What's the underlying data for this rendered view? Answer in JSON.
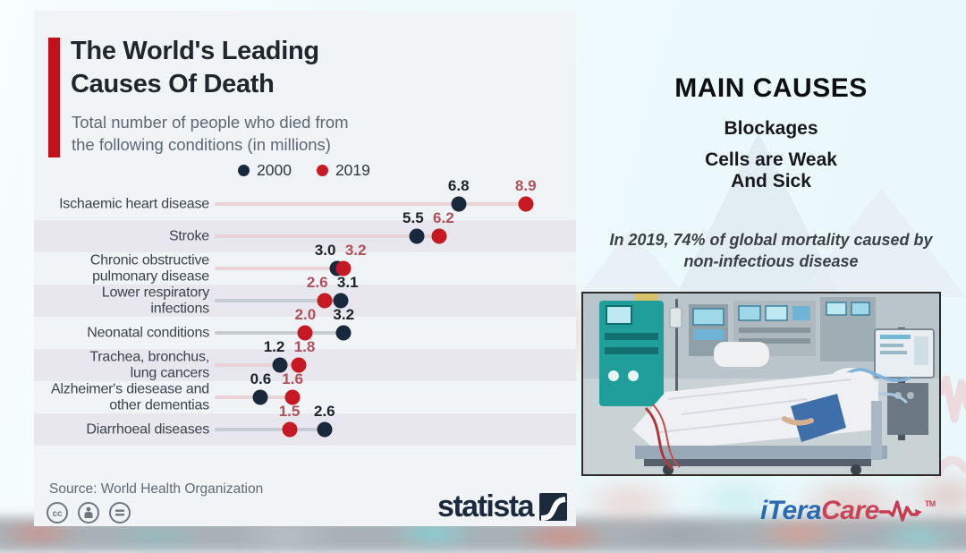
{
  "infographic": {
    "title_line1": "The World's Leading",
    "title_line2": "Causes Of Death",
    "subtitle_line1": "Total number of people who died from",
    "subtitle_line2": "the following conditions (in millions)",
    "source": "Source: World Health Organization",
    "statista_label": "statista",
    "license_icons": [
      "cc-icon",
      "attribution-person-icon",
      "equals-icon"
    ],
    "accent_color": "#c1121c"
  },
  "chart_data": {
    "type": "dumbbell",
    "title": "The World's Leading Causes Of Death",
    "unit": "millions of deaths",
    "xlim": [
      0,
      10
    ],
    "legend_position": "top",
    "series": [
      {
        "name": "2000",
        "dot_color": "#18293e",
        "value_color": "#1c222c",
        "line_color": "#c6ccd2"
      },
      {
        "name": "2019",
        "dot_color": "#c51a24",
        "value_color": "#b0515a",
        "line_color": "#e9d3d5"
      }
    ],
    "rows": [
      {
        "label_lines": [
          "Ischaemic heart disease"
        ],
        "v2000": 6.8,
        "v2019": 8.9
      },
      {
        "label_lines": [
          "Stroke"
        ],
        "v2000": 5.5,
        "v2019": 6.2
      },
      {
        "label_lines": [
          "Chronic obstructive",
          "pulmonary disease"
        ],
        "v2000": 3.0,
        "v2019": 3.2
      },
      {
        "label_lines": [
          "Lower respiratory",
          "infections"
        ],
        "v2000": 3.1,
        "v2019": 2.6
      },
      {
        "label_lines": [
          "Neonatal conditions"
        ],
        "v2000": 3.2,
        "v2019": 2.0
      },
      {
        "label_lines": [
          "Trachea, bronchus,",
          "lung cancers"
        ],
        "v2000": 1.2,
        "v2019": 1.8
      },
      {
        "label_lines": [
          "Alzheimer's diesease and",
          "other dementias"
        ],
        "v2000": 0.6,
        "v2019": 1.6
      },
      {
        "label_lines": [
          "Diarrhoeal diseases"
        ],
        "v2000": 2.6,
        "v2019": 1.5
      }
    ]
  },
  "right_panel": {
    "heading": "MAIN CAUSES",
    "blockages": "Blockages",
    "cells_line1": "Cells are Weak",
    "cells_line2": "And Sick",
    "note_line1": "In 2019, 74% of global mortality caused by",
    "note_line2": "non-infectious disease",
    "photo_alt": "ICU patient on ventilator in hospital bed",
    "brand_blue": "iTera",
    "brand_red": "Care",
    "brand_tm": "TM"
  }
}
